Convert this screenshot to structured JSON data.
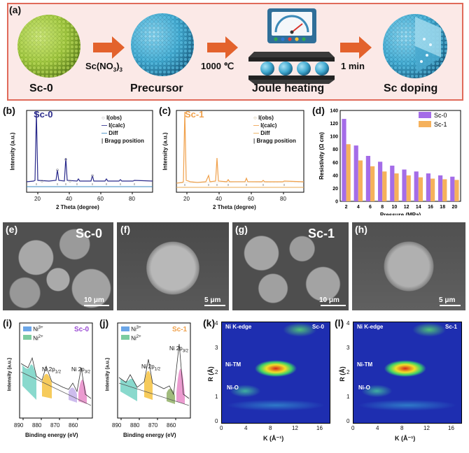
{
  "panel_a": {
    "label": "(a)",
    "reagent": "Sc(NO",
    "reagent_sub": "3",
    "reagent_close": ")",
    "reagent_sub2": "3",
    "temperature": "1000 ℃",
    "time": "1 min",
    "steps": [
      "Sc-0",
      "Precursor",
      "Joule heating",
      "Sc doping"
    ]
  },
  "panel_b": {
    "label": "(b)",
    "sample": "Sc-0",
    "ylabel": "Intensity (a.u.)",
    "xlabel": "2 Theta (degree)",
    "xticks": [
      "20",
      "40",
      "60",
      "80"
    ],
    "legend": [
      "I(obs)",
      "I(calc)",
      "Diff",
      "Bragg position"
    ]
  },
  "panel_c": {
    "label": "(c)",
    "sample": "Sc-1",
    "ylabel": "Intensity (a.u.)",
    "xlabel": "2 Theta (degree)",
    "xticks": [
      "20",
      "40",
      "60",
      "80"
    ],
    "legend": [
      "I(obs)",
      "I(calc)",
      "Diff",
      "Bragg position"
    ]
  },
  "panel_e": {
    "label": "(e)",
    "sample": "Sc-0",
    "scale": "10 μm"
  },
  "panel_f": {
    "label": "(f)",
    "scale": "5 μm"
  },
  "panel_g": {
    "label": "(g)",
    "sample": "Sc-1",
    "scale": "10 μm"
  },
  "panel_h": {
    "label": "(h)",
    "scale": "5 μm"
  },
  "panel_i": {
    "label": "(i)",
    "sample": "Sc-0",
    "ylabel": "Intensity (a.u.)",
    "xlabel": "Binding energy (eV)",
    "xticks": [
      "890",
      "880",
      "870",
      "860"
    ],
    "legend": [
      "Ni",
      "Ni"
    ],
    "legend_sup": [
      "3+",
      "2+"
    ],
    "peak1": "Ni 2p",
    "peak1_sub": "1/2",
    "peak2": "Ni 2p",
    "peak2_sub": "3/2"
  },
  "panel_j": {
    "label": "(j)",
    "sample": "Sc-1",
    "ylabel": "Intensity (a.u.)",
    "xlabel": "Binding energy (eV)",
    "xticks": [
      "890",
      "880",
      "870",
      "860"
    ],
    "legend": [
      "Ni",
      "Ni"
    ],
    "legend_sup": [
      "3+",
      "2+"
    ],
    "peak1": "Ni 2p",
    "peak1_sub": "1/2",
    "peak2": "Ni 2p",
    "peak2_sub": "3/2"
  },
  "panel_k": {
    "label": "(k)",
    "title": "Ni K-edge",
    "sample": "Sc-0",
    "ylabel": "R (Å)",
    "xlabel": "K (Å⁻¹)",
    "xticks": [
      "0",
      "4",
      "8",
      "12",
      "16"
    ],
    "yticks": [
      "0",
      "1",
      "2",
      "3",
      "4"
    ],
    "annot1": "Ni-TM",
    "annot2": "Ni-O"
  },
  "panel_l": {
    "label": "(l)",
    "title": "Ni K-edge",
    "sample": "Sc-1",
    "ylabel": "R (Å)",
    "xlabel": "K (Å⁻¹)",
    "xticks": [
      "0",
      "4",
      "8",
      "12",
      "16"
    ],
    "yticks": [
      "0",
      "1",
      "2",
      "3",
      "4"
    ],
    "annot1": "Ni-TM",
    "annot2": "Ni-O"
  },
  "chart_data": [
    {
      "type": "bar",
      "panel": "(d)",
      "categories": [
        "2",
        "4",
        "6",
        "8",
        "10",
        "12",
        "14",
        "16",
        "18",
        "20"
      ],
      "series": [
        {
          "name": "Sc-0",
          "values": [
            127,
            86,
            70,
            61,
            55,
            49,
            46,
            43,
            40,
            38
          ],
          "color": "#a46ce8"
        },
        {
          "name": "Sc-1",
          "values": [
            88,
            63,
            54,
            46,
            43,
            40,
            37,
            35,
            34,
            33
          ],
          "color": "#f5b15c"
        }
      ],
      "xlabel": "Pressure (MPa)",
      "ylabel": "Resistivity (Ω cm)",
      "ylim": [
        0,
        140
      ],
      "yticks": [
        "0",
        "20",
        "40",
        "60",
        "80",
        "100",
        "120",
        "140"
      ],
      "legend": "top-right"
    }
  ]
}
